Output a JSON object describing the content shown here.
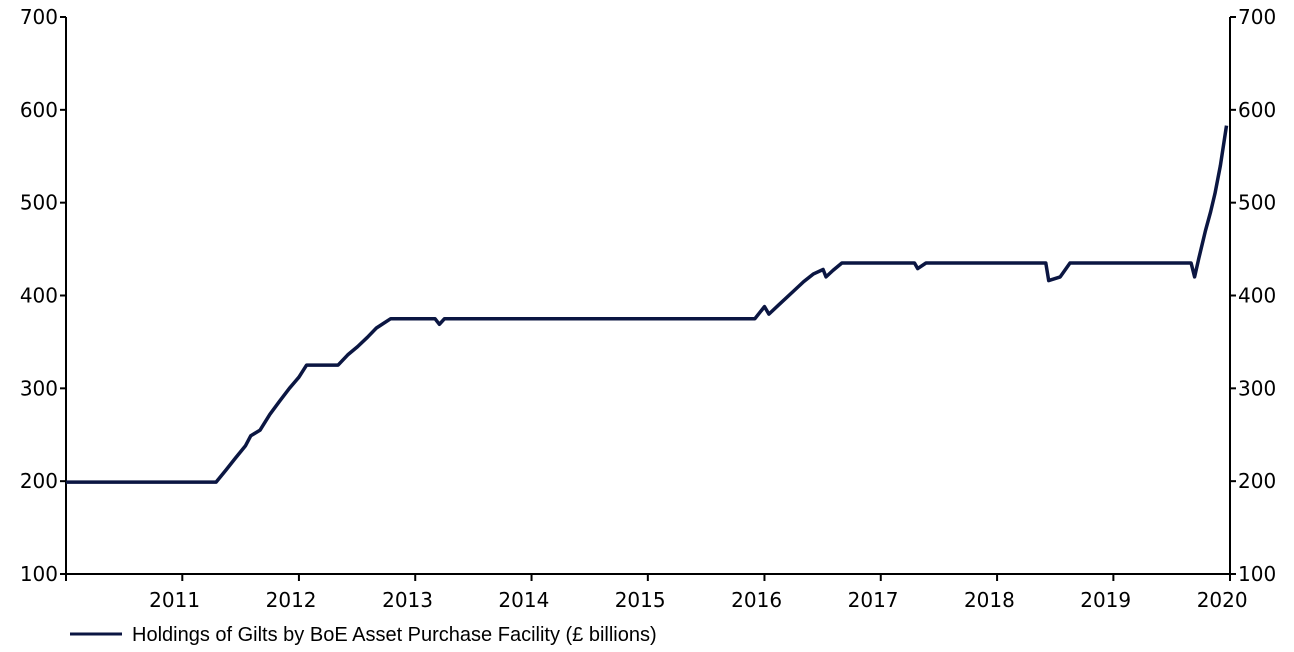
{
  "chart_data": {
    "type": "line",
    "title": "",
    "xlabel": "",
    "ylabel": "",
    "ylim": [
      100,
      700
    ],
    "yticks": [
      100,
      200,
      300,
      400,
      500,
      600,
      700
    ],
    "xlim": [
      "2010-07-01",
      "2020-07-01"
    ],
    "x_tick_labels": [
      "2011",
      "2012",
      "2013",
      "2014",
      "2015",
      "2016",
      "2017",
      "2018",
      "2019",
      "2020"
    ],
    "grid": false,
    "legend_position": "bottom-left",
    "line_color": "#0b1642",
    "series": [
      {
        "name": "Holdings of Gilts by BoE Asset Purchase Facility (£ billions)",
        "points": [
          [
            "2010-07-01",
            199
          ],
          [
            "2011-10-15",
            199
          ],
          [
            "2011-11-15",
            212
          ],
          [
            "2011-12-15",
            225
          ],
          [
            "2012-01-15",
            238
          ],
          [
            "2012-02-01",
            249
          ],
          [
            "2012-03-01",
            255
          ],
          [
            "2012-04-01",
            272
          ],
          [
            "2012-05-01",
            286
          ],
          [
            "2012-06-01",
            300
          ],
          [
            "2012-07-01",
            312
          ],
          [
            "2012-07-25",
            325
          ],
          [
            "2012-11-01",
            325
          ],
          [
            "2012-12-01",
            336
          ],
          [
            "2013-01-01",
            345
          ],
          [
            "2013-02-01",
            355
          ],
          [
            "2013-03-01",
            365
          ],
          [
            "2013-04-15",
            375
          ],
          [
            "2013-09-01",
            375
          ],
          [
            "2013-09-15",
            369
          ],
          [
            "2013-10-01",
            375
          ],
          [
            "2016-06-01",
            375
          ],
          [
            "2016-07-01",
            388
          ],
          [
            "2016-07-15",
            380
          ],
          [
            "2016-08-15",
            390
          ],
          [
            "2016-10-01",
            405
          ],
          [
            "2016-11-01",
            415
          ],
          [
            "2016-12-01",
            423
          ],
          [
            "2017-01-01",
            428
          ],
          [
            "2017-01-10",
            420
          ],
          [
            "2017-02-01",
            427
          ],
          [
            "2017-03-01",
            435
          ],
          [
            "2017-10-15",
            435
          ],
          [
            "2017-10-25",
            429
          ],
          [
            "2017-11-20",
            435
          ],
          [
            "2018-12-01",
            435
          ],
          [
            "2018-12-10",
            416
          ],
          [
            "2019-01-15",
            420
          ],
          [
            "2019-02-15",
            435
          ],
          [
            "2019-03-15",
            435
          ],
          [
            "2020-03-01",
            435
          ],
          [
            "2020-03-12",
            420
          ],
          [
            "2020-03-25",
            440
          ],
          [
            "2020-04-15",
            470
          ],
          [
            "2020-05-01",
            490
          ],
          [
            "2020-05-15",
            510
          ],
          [
            "2020-06-01",
            540
          ],
          [
            "2020-06-20",
            583
          ]
        ]
      }
    ]
  }
}
